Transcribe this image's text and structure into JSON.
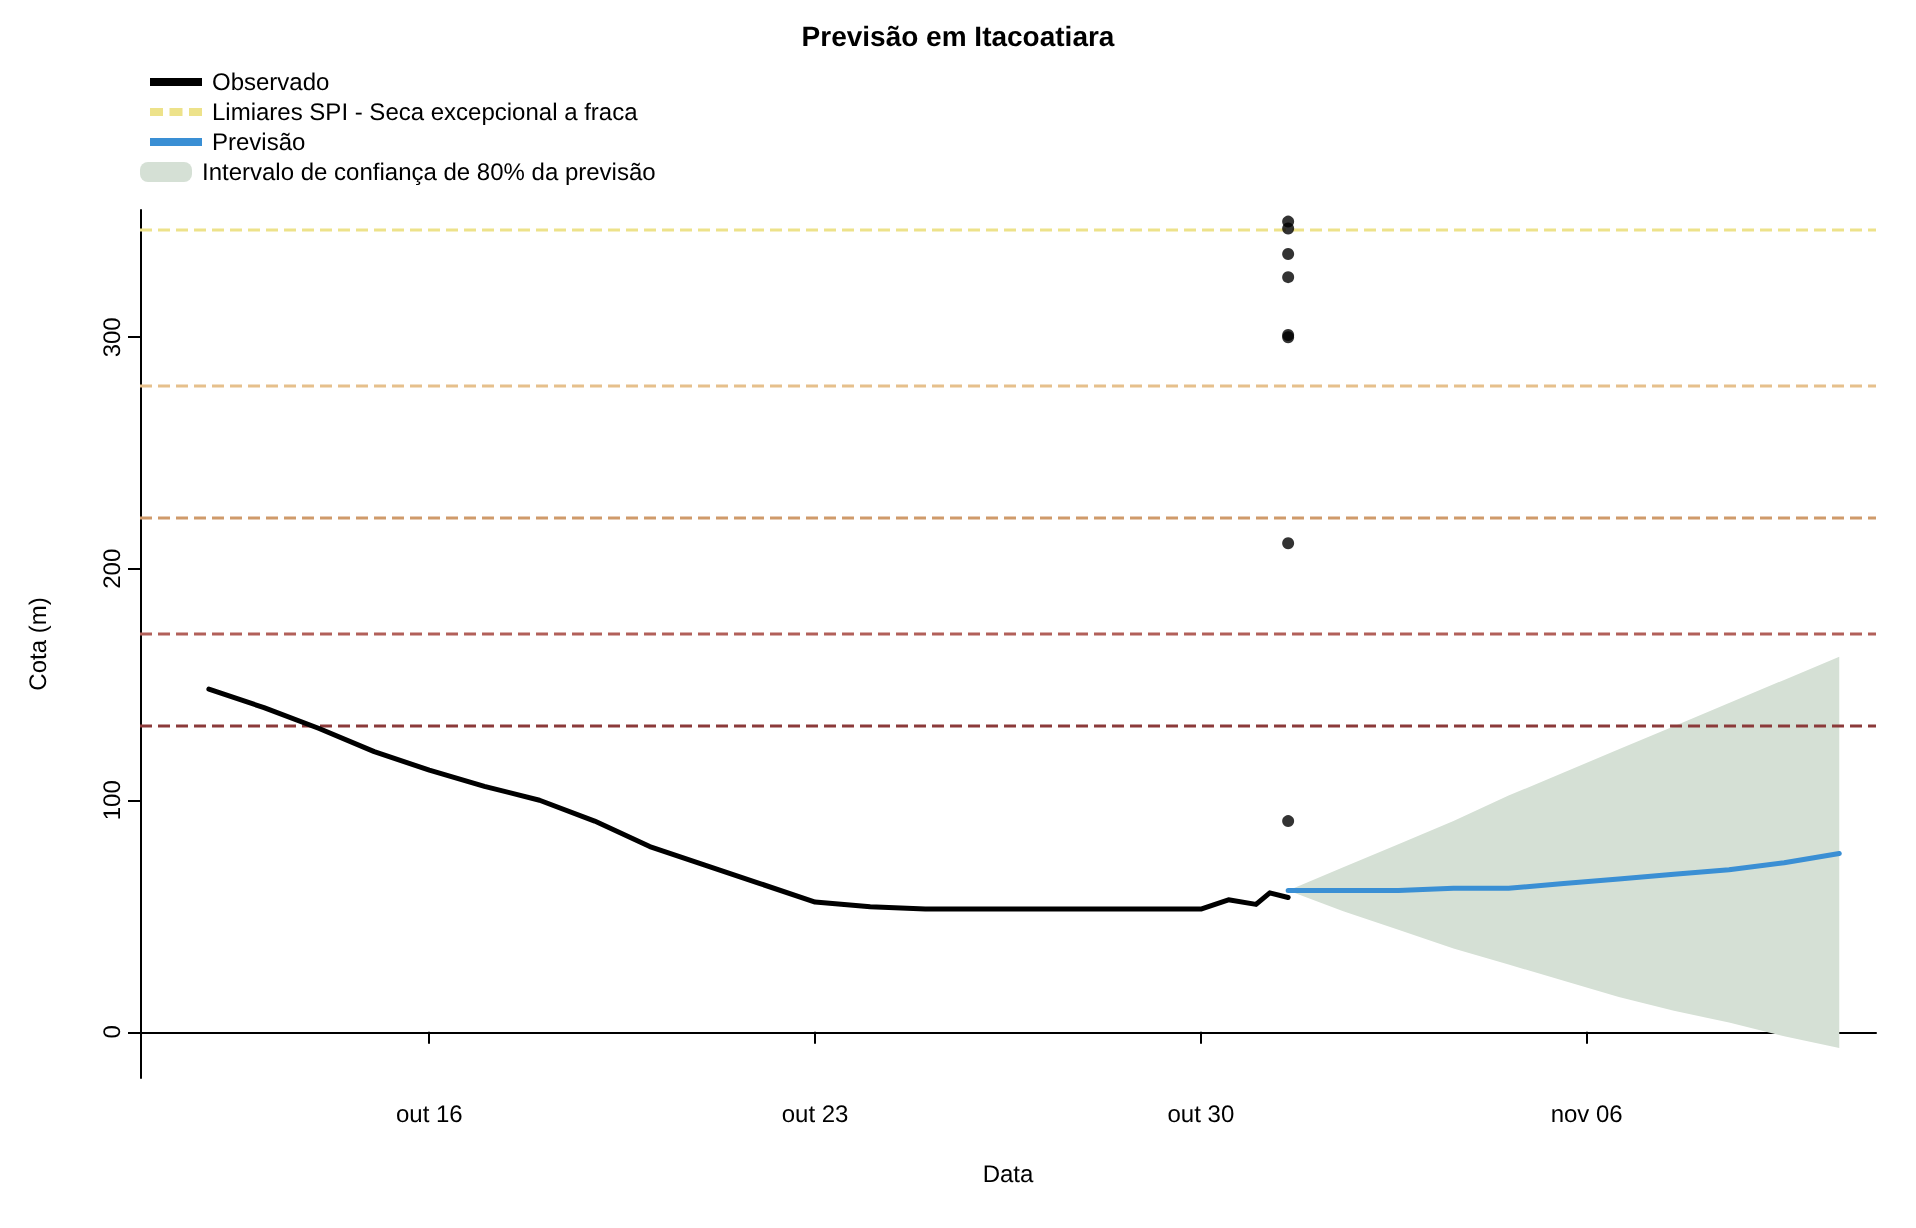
{
  "chart_data": {
    "type": "line",
    "title": "Previsão em Itacoatiara",
    "xlabel": "Data",
    "ylabel": "Cota (m)",
    "annotations": [
      "Intervalo de confiança de 80% da previsão"
    ],
    "xlim": [
      "--10-10T18:00",
      "--11-11T06:00"
    ],
    "ylim": [
      -20,
      355
    ],
    "xticks": [
      {
        "value": "--10-16",
        "label": "out 16"
      },
      {
        "value": "--10-23",
        "label": "out 23"
      },
      {
        "value": "--10-30",
        "label": "out 30"
      },
      {
        "value": "--11-06",
        "label": "nov 06"
      }
    ],
    "yticks": [
      0,
      100,
      200,
      300
    ],
    "legend": "top left",
    "series": [
      {
        "name": "Observado",
        "color": "#000000",
        "marker": "none",
        "line_style": "solid",
        "x": [
          "--10-12",
          "--10-13",
          "--10-14",
          "--10-15",
          "--10-16",
          "--10-17",
          "--10-18",
          "--10-19",
          "--10-20",
          "--10-21",
          "--10-22",
          "--10-23",
          "--10-24",
          "--10-25",
          "--10-26",
          "--10-27",
          "--10-28",
          "--10-29",
          "--10-30",
          "--10-30T12:00",
          "--10-31",
          "--10-31T06:00",
          "--10-31T14:00"
        ],
        "values": [
          148,
          140,
          131,
          121,
          113,
          106,
          100,
          91,
          80,
          72,
          64,
          56,
          54,
          53,
          53,
          53,
          53,
          53,
          53,
          57,
          55,
          60,
          58
        ]
      },
      {
        "name": "Previsão",
        "color": "#3a8fd4",
        "marker": "none",
        "line_style": "solid",
        "x": [
          "--10-31T14:00",
          "--11-01T14:00",
          "--11-02T14:00",
          "--11-03T14:00",
          "--11-04T14:00",
          "--11-05T14:00",
          "--11-06T14:00",
          "--11-07T14:00",
          "--11-08T14:00",
          "--11-09T14:00",
          "--11-10T14:00"
        ],
        "values": [
          61,
          61,
          61,
          62,
          62,
          64,
          66,
          68,
          70,
          73,
          77
        ],
        "lower": [
          61,
          52,
          44,
          36,
          29,
          22,
          15,
          9,
          4,
          -2,
          -7
        ],
        "upper": [
          61,
          71,
          81,
          91,
          102,
          112,
          122,
          132,
          142,
          152,
          162
        ]
      },
      {
        "type": "scatter",
        "color": "#000000",
        "marker": "circle",
        "x": [
          "--10-31T14:00",
          "--10-31T14:00",
          "--10-31T14:00",
          "--10-31T14:00",
          "--10-31T14:00",
          "--10-31T14:00",
          "--10-31T14:00",
          "--10-31T14:00"
        ],
        "values": [
          350,
          347,
          336,
          326,
          301,
          300,
          211,
          91
        ]
      }
    ],
    "ref_lines": [
      {
        "axis": "y",
        "value": 347,
        "color": "#ede28a",
        "line_style": "dashed",
        "label": "Limiares SPI - Seca excepcional a fraca"
      },
      {
        "axis": "y",
        "value": 279,
        "color": "#e6c08c",
        "line_style": "dashed"
      },
      {
        "axis": "y",
        "value": 222,
        "color": "#cf9a6a",
        "line_style": "dashed"
      },
      {
        "axis": "y",
        "value": 172,
        "color": "#b2605a",
        "line_style": "dashed"
      },
      {
        "axis": "y",
        "value": 132,
        "color": "#8b3a3a",
        "line_style": "dashed"
      }
    ]
  }
}
